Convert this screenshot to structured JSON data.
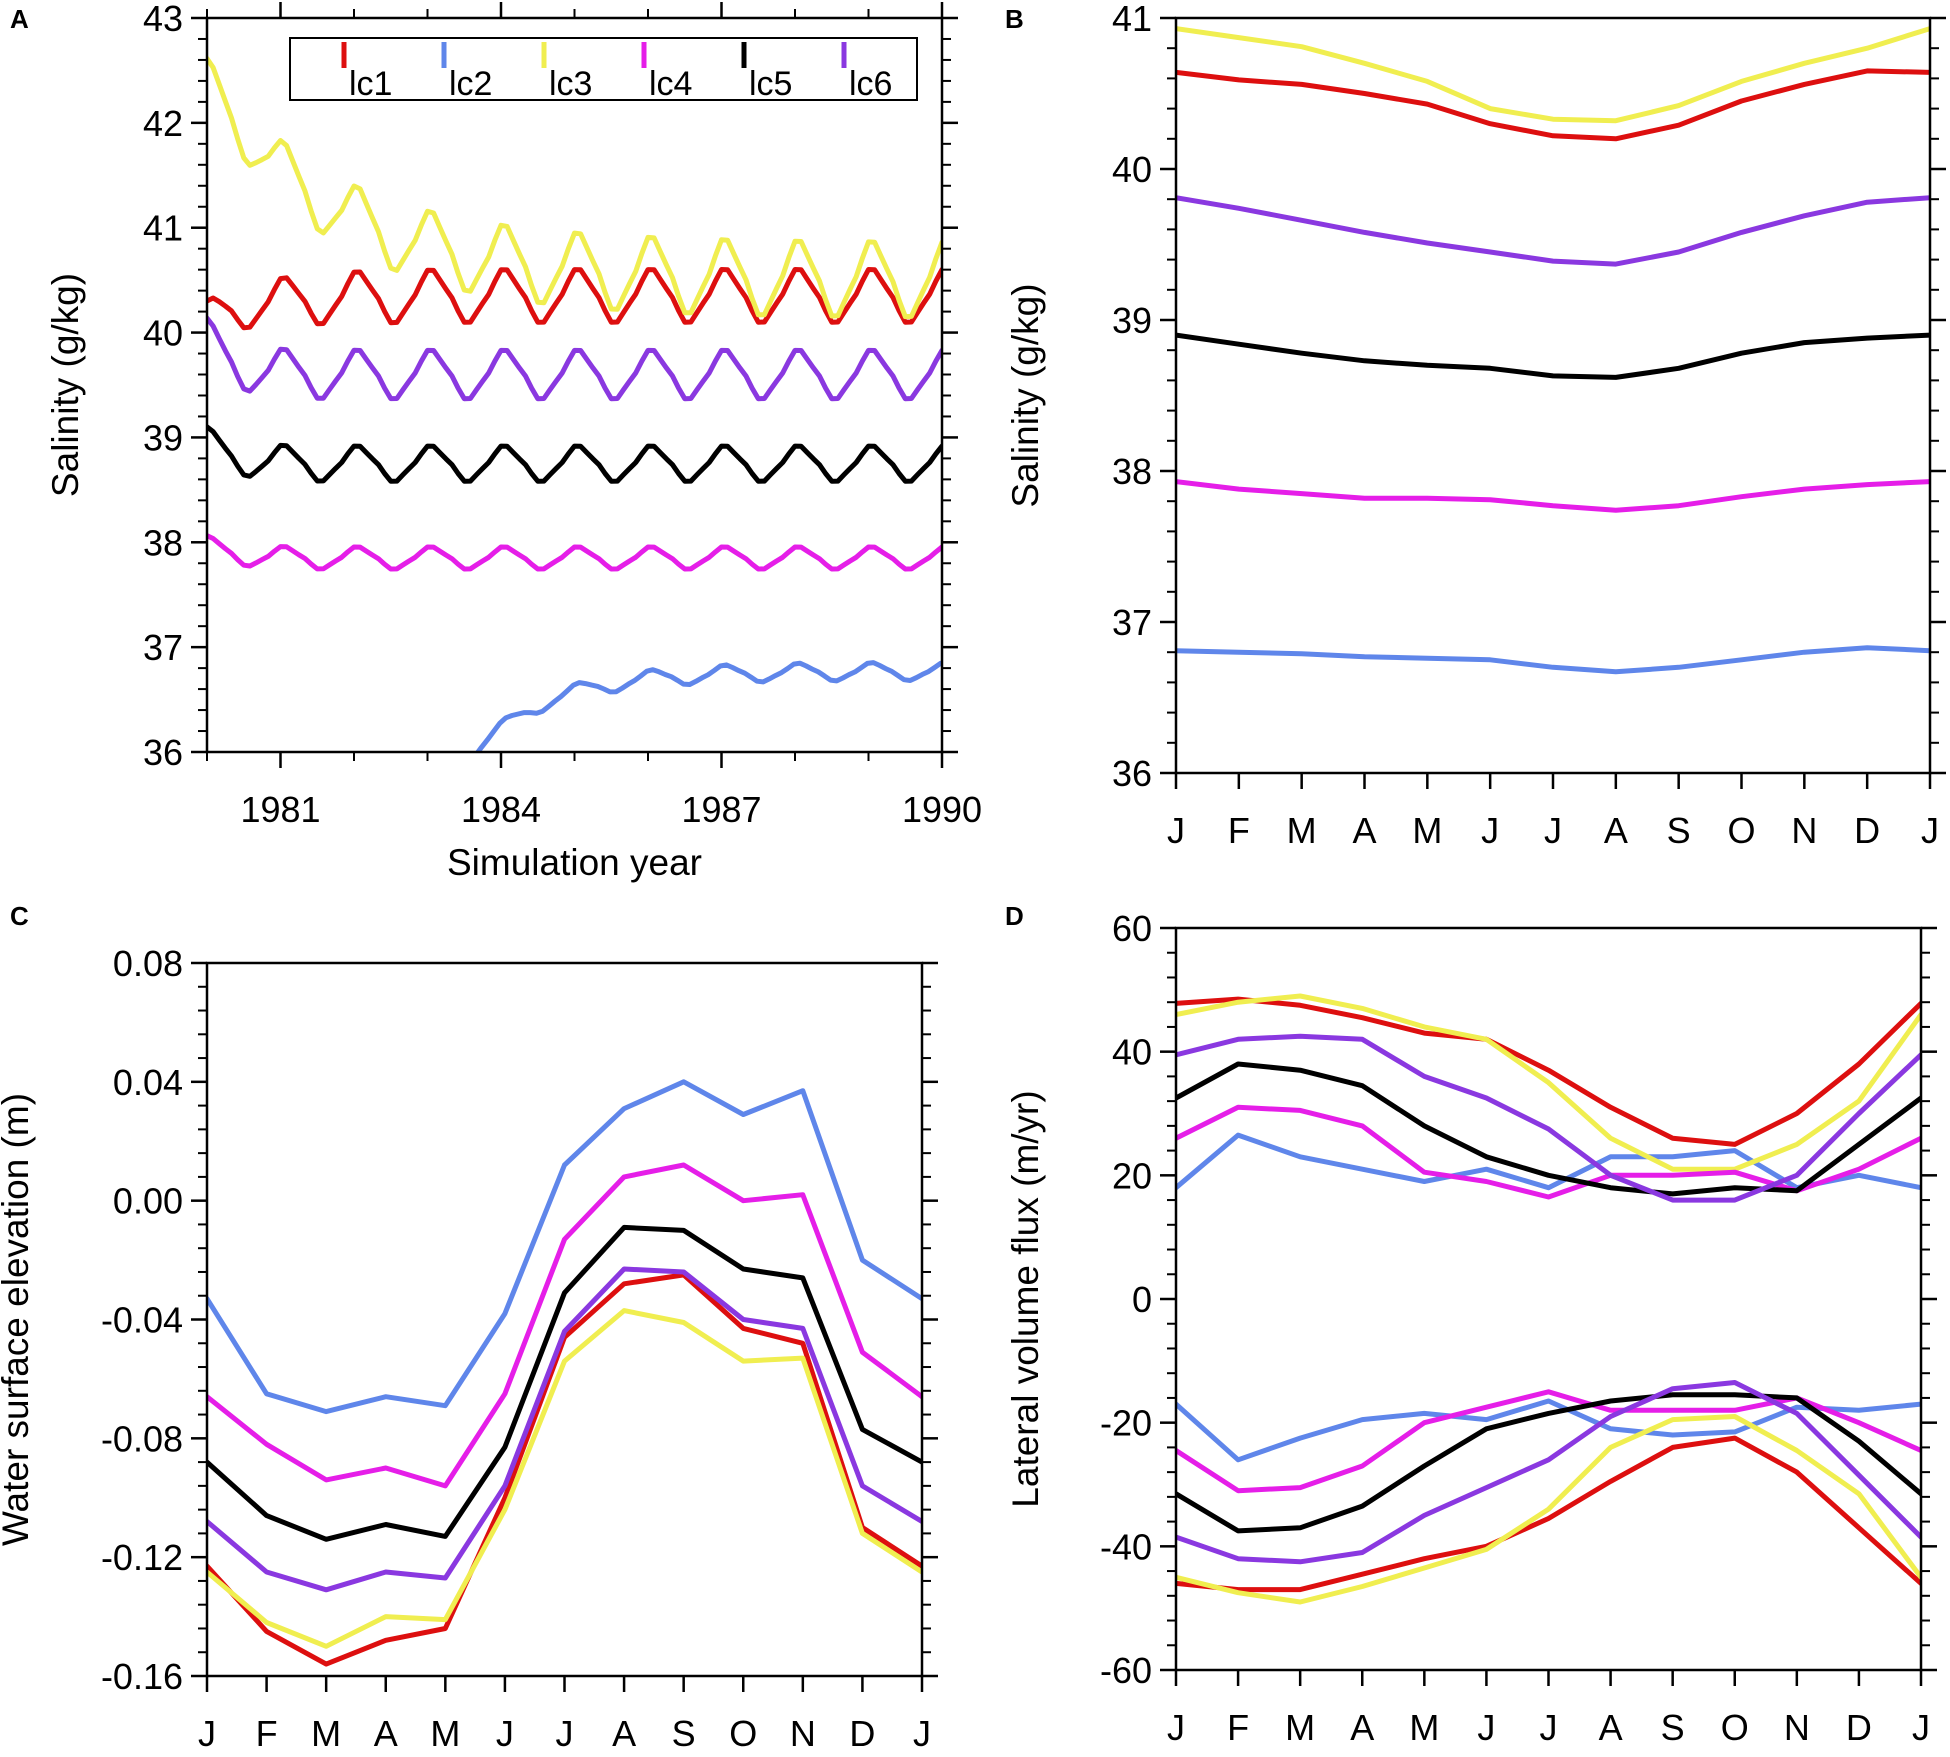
{
  "colors": {
    "lc1": "#dd0f0f",
    "lc2": "#5f86ea",
    "lc3": "#f0ee50",
    "lc4": "#e51ee8",
    "lc5": "#000000",
    "lc6": "#8a38e0"
  },
  "legend": [
    "lc1",
    "lc2",
    "lc3",
    "lc4",
    "lc5",
    "lc6"
  ],
  "chart_data": [
    {
      "panel": "A",
      "type": "line",
      "title": "",
      "xlabel": "Simulation year",
      "ylabel": "Salinity (g/kg)",
      "xlim": [
        1980,
        1990
      ],
      "ylim": [
        36,
        43
      ],
      "xticks": [
        "1981",
        "1984",
        "1987",
        "1990"
      ],
      "xtick_values": [
        1981,
        1984,
        1987,
        1990
      ],
      "yticks": [
        "36",
        "37",
        "38",
        "39",
        "40",
        "41",
        "42",
        "43"
      ],
      "grid": false,
      "legend_position": "top-right",
      "legend": [
        "lc1",
        "lc2",
        "lc3",
        "lc4",
        "lc5",
        "lc6"
      ],
      "series": [
        {
          "name": "lc1",
          "kind": "seasonal",
          "start": 1980.0,
          "base": 40.35,
          "amp": 0.24,
          "startVal": 40.15,
          "settle": 0.8
        },
        {
          "name": "lc2",
          "kind": "seasonal",
          "start": 1983.65,
          "base": 36.77,
          "amp": 0.08,
          "startVal": 36.0,
          "settle": 1.0
        },
        {
          "name": "lc3",
          "kind": "seasonal",
          "start": 1980.0,
          "base": 40.5,
          "amp": 0.34,
          "startVal": 42.4,
          "settle": 1.7
        },
        {
          "name": "lc4",
          "kind": "seasonal",
          "start": 1980.0,
          "base": 37.85,
          "amp": 0.1,
          "startVal": 38.0,
          "settle": 0.3
        },
        {
          "name": "lc5",
          "kind": "seasonal",
          "start": 1980.0,
          "base": 38.75,
          "amp": 0.16,
          "startVal": 39.0,
          "settle": 0.3
        },
        {
          "name": "lc6",
          "kind": "seasonal",
          "start": 1980.0,
          "base": 39.6,
          "amp": 0.22,
          "startVal": 40.0,
          "settle": 0.3
        }
      ]
    },
    {
      "panel": "B",
      "type": "line",
      "title": "",
      "xlabel": "",
      "ylabel": "Salinity (g/kg)",
      "categories": [
        "J",
        "F",
        "M",
        "A",
        "M",
        "J",
        "J",
        "A",
        "S",
        "O",
        "N",
        "D",
        "J"
      ],
      "ylim": [
        36,
        41
      ],
      "yticks": [
        "36",
        "37",
        "38",
        "39",
        "40",
        "41"
      ],
      "grid": false,
      "series": [
        {
          "name": "lc1",
          "values": [
            40.64,
            40.59,
            40.56,
            40.5,
            40.43,
            40.3,
            40.22,
            40.2,
            40.29,
            40.45,
            40.56,
            40.65,
            40.64
          ]
        },
        {
          "name": "lc2",
          "values": [
            36.81,
            36.8,
            36.79,
            36.77,
            36.76,
            36.75,
            36.7,
            36.67,
            36.7,
            36.75,
            36.8,
            36.83,
            36.81
          ]
        },
        {
          "name": "lc3",
          "values": [
            40.93,
            40.87,
            40.81,
            40.7,
            40.58,
            40.4,
            40.33,
            40.32,
            40.42,
            40.58,
            40.7,
            40.8,
            40.93
          ]
        },
        {
          "name": "lc4",
          "values": [
            37.93,
            37.88,
            37.85,
            37.82,
            37.82,
            37.81,
            37.77,
            37.74,
            37.77,
            37.83,
            37.88,
            37.91,
            37.93
          ]
        },
        {
          "name": "lc5",
          "values": [
            38.9,
            38.84,
            38.78,
            38.73,
            38.7,
            38.68,
            38.63,
            38.62,
            38.68,
            38.78,
            38.85,
            38.88,
            38.9
          ]
        },
        {
          "name": "lc6",
          "values": [
            39.81,
            39.74,
            39.66,
            39.58,
            39.51,
            39.45,
            39.39,
            39.37,
            39.45,
            39.58,
            39.69,
            39.78,
            39.81
          ]
        }
      ]
    },
    {
      "panel": "C",
      "type": "line",
      "title": "",
      "xlabel": "",
      "ylabel": "Water surface elevation (m)",
      "categories": [
        "J",
        "F",
        "M",
        "A",
        "M",
        "J",
        "J",
        "A",
        "S",
        "O",
        "N",
        "D",
        "J"
      ],
      "ylim": [
        -0.16,
        0.08
      ],
      "yticks": [
        "-0.16",
        "-0.12",
        "-0.08",
        "-0.04",
        "0.00",
        "0.04",
        "0.08"
      ],
      "grid": false,
      "series": [
        {
          "name": "lc1",
          "values": [
            -0.123,
            -0.145,
            -0.156,
            -0.148,
            -0.144,
            -0.1,
            -0.046,
            -0.028,
            -0.025,
            -0.043,
            -0.048,
            -0.11,
            -0.123
          ]
        },
        {
          "name": "lc2",
          "values": [
            -0.033,
            -0.065,
            -0.071,
            -0.066,
            -0.069,
            -0.038,
            0.012,
            0.031,
            0.04,
            0.029,
            0.037,
            -0.02,
            -0.033
          ]
        },
        {
          "name": "lc3",
          "values": [
            -0.125,
            -0.142,
            -0.15,
            -0.14,
            -0.141,
            -0.104,
            -0.054,
            -0.037,
            -0.041,
            -0.054,
            -0.053,
            -0.112,
            -0.125
          ]
        },
        {
          "name": "lc4",
          "values": [
            -0.066,
            -0.082,
            -0.094,
            -0.09,
            -0.096,
            -0.065,
            -0.013,
            0.008,
            0.012,
            0.0,
            0.002,
            -0.051,
            -0.066
          ]
        },
        {
          "name": "lc5",
          "values": [
            -0.088,
            -0.106,
            -0.114,
            -0.109,
            -0.113,
            -0.083,
            -0.031,
            -0.009,
            -0.01,
            -0.023,
            -0.026,
            -0.077,
            -0.088
          ]
        },
        {
          "name": "lc6",
          "values": [
            -0.108,
            -0.125,
            -0.131,
            -0.125,
            -0.127,
            -0.096,
            -0.044,
            -0.023,
            -0.024,
            -0.04,
            -0.043,
            -0.096,
            -0.108
          ]
        }
      ]
    },
    {
      "panel": "D",
      "type": "line",
      "title": "",
      "xlabel": "",
      "ylabel": "Lateral volume flux (m/yr)",
      "categories": [
        "J",
        "F",
        "M",
        "A",
        "M",
        "J",
        "J",
        "A",
        "S",
        "O",
        "N",
        "D",
        "J"
      ],
      "ylim": [
        -60,
        60
      ],
      "yticks": [
        "-60",
        "-40",
        "-20",
        "0",
        "20",
        "40",
        "60"
      ],
      "grid": false,
      "series": [
        {
          "name": "lc1",
          "values": [
            47.8,
            48.5,
            47.5,
            45.5,
            43,
            42,
            37,
            31,
            26,
            25,
            30,
            38,
            47.8
          ]
        },
        {
          "name": "lc2",
          "values": [
            18,
            26.5,
            23,
            21,
            19,
            21,
            18,
            23,
            23,
            24,
            18,
            20,
            18
          ]
        },
        {
          "name": "lc3",
          "values": [
            46,
            48,
            49,
            47,
            44,
            42,
            35,
            26,
            21,
            21,
            25,
            32,
            46
          ]
        },
        {
          "name": "lc4",
          "values": [
            26,
            31,
            30.5,
            28,
            20.5,
            19,
            16.5,
            20,
            20,
            20.5,
            17.5,
            21,
            26
          ]
        },
        {
          "name": "lc5",
          "values": [
            32.5,
            38,
            37,
            34.5,
            28,
            23,
            20,
            18,
            17,
            18,
            17.5,
            25,
            32.5
          ]
        },
        {
          "name": "lc6",
          "values": [
            39.5,
            42,
            42.5,
            42,
            36,
            32.5,
            27.5,
            20,
            16,
            16,
            20,
            30,
            39.5
          ]
        },
        {
          "name": "lc1",
          "values": [
            -46,
            -47,
            -47,
            -44.5,
            -42,
            -40,
            -35.5,
            -29.5,
            -24,
            -22.5,
            -28,
            -37,
            -46
          ]
        },
        {
          "name": "lc2",
          "values": [
            -17,
            -26,
            -22.5,
            -19.5,
            -18.5,
            -19.5,
            -16.5,
            -21,
            -22,
            -21.5,
            -17.5,
            -18,
            -17
          ]
        },
        {
          "name": "lc3",
          "values": [
            -45,
            -47.5,
            -49,
            -46.5,
            -43.5,
            -40.5,
            -34,
            -24,
            -19.5,
            -19,
            -24.5,
            -31.5,
            -45
          ]
        },
        {
          "name": "lc4",
          "values": [
            -24.5,
            -31,
            -30.5,
            -27,
            -20,
            -17.5,
            -15,
            -18,
            -18,
            -18,
            -16,
            -20,
            -24.5
          ]
        },
        {
          "name": "lc5",
          "values": [
            -31.5,
            -37.5,
            -37,
            -33.5,
            -27,
            -21,
            -18.5,
            -16.5,
            -15.5,
            -15.5,
            -16,
            -23,
            -31.5
          ]
        },
        {
          "name": "lc6",
          "values": [
            -38.5,
            -42,
            -42.5,
            -41,
            -35,
            -30.5,
            -26,
            -19,
            -14.5,
            -13.5,
            -18.5,
            -28.5,
            -38.5
          ]
        }
      ]
    }
  ]
}
